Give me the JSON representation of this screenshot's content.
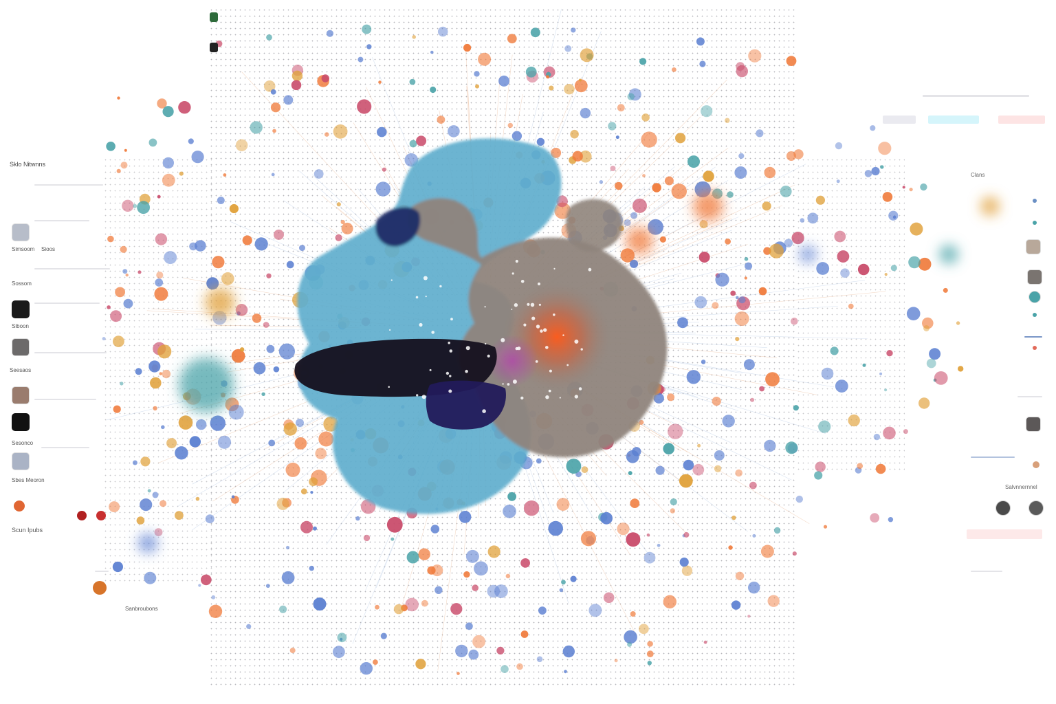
{
  "colors": {
    "blue": "#5b7fd1",
    "orange": "#f07a3a",
    "teal": "#4aa3a8",
    "cluster_light_blue": "#5eaecd",
    "cluster_taupe": "#8f847c",
    "cluster_dark": "#15101e",
    "cluster_navy": "#221a5a",
    "accent_cyan": "#5fd3e8",
    "accent_red": "#f6b3b3"
  },
  "legend": {
    "items": [
      {
        "icon": "green-square-icon",
        "color": "#2e6b3b"
      },
      {
        "icon": "dark-square-icon",
        "color": "#222222"
      }
    ]
  },
  "sidebar": {
    "title": "Sklo Nitwnns",
    "sections": [
      {
        "label": "Simsoom",
        "thumb_color": "#b7bdc9"
      },
      {
        "label": "Sioos",
        "thumb_color": "#ffffff"
      },
      {
        "label": "Sossom",
        "thumb_color": "#1a1a1a"
      },
      {
        "label": "Siboon",
        "thumb_color": "#6c6a6a"
      },
      {
        "label": "Seesaos",
        "thumb_color": "#9a7c6e"
      },
      {
        "label": "Sesonco",
        "thumb_color": "#111111"
      },
      {
        "label": "Sbes Meoron",
        "thumb_color": "#aab3c5"
      }
    ],
    "footer_label": "Scun Ipubs",
    "bottom_label": "Sanbroubons",
    "swatches": [
      {
        "icon": "orange-swatch-icon",
        "color": "#e06633"
      },
      {
        "icon": "red-swatch-icon",
        "color": "#b02020"
      },
      {
        "icon": "red-swatch-icon",
        "color": "#c83030"
      },
      {
        "icon": "amber-swatch-icon",
        "color": "#d7742a"
      }
    ]
  },
  "right_panel": {
    "tabs": [
      {
        "label": "",
        "color": "#eaeaf0"
      },
      {
        "label": "",
        "color": "#d5f5fb"
      },
      {
        "label": "",
        "color": "#fde4e4"
      }
    ],
    "header_label": "Clans",
    "section_label": "Salvnnernnel",
    "status_text": "",
    "thumbs": [
      {
        "icon": "beige-thumb-icon",
        "color": "#b8a89a"
      },
      {
        "icon": "grey-thumb-icon",
        "color": "#7a7470"
      },
      {
        "icon": "teal-thumb-icon",
        "color": "#4aa3a8"
      },
      {
        "icon": "dark-thumb-icon",
        "color": "#5c5858"
      }
    ],
    "buttons": [
      {
        "icon": "dark-circle-icon",
        "color": "#4a4a4a"
      },
      {
        "icon": "dark-circle-icon",
        "color": "#5a5a5a"
      }
    ]
  }
}
